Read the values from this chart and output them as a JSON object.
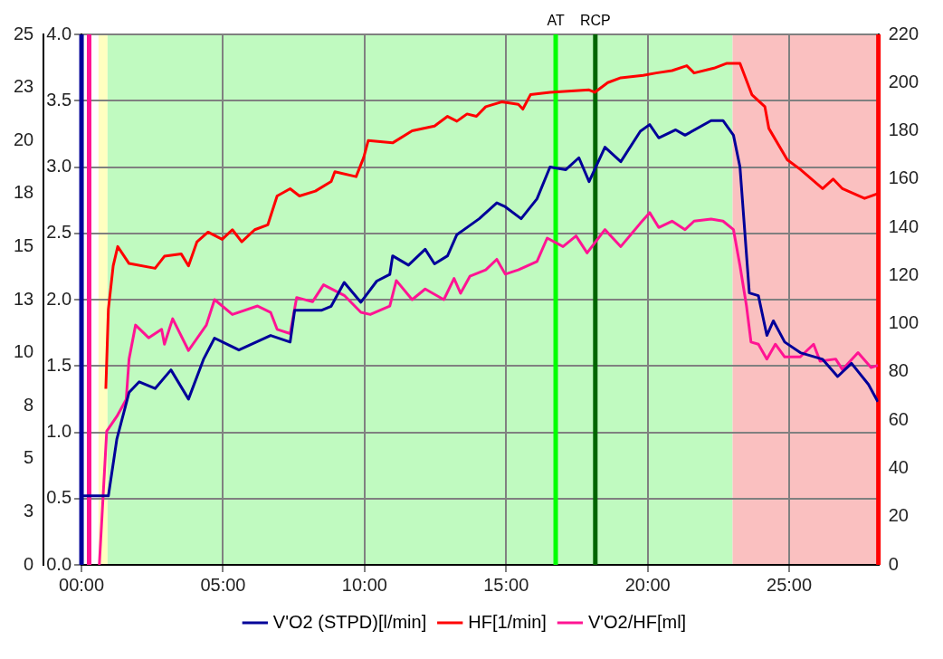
{
  "chart_data": {
    "type": "line",
    "xlim": [
      0,
      28.15
    ],
    "xticks": [
      {
        "value": 0,
        "label": "00:00"
      },
      {
        "value": 5,
        "label": "05:00"
      },
      {
        "value": 10,
        "label": "10:00"
      },
      {
        "value": 15,
        "label": "15:00"
      },
      {
        "value": 20,
        "label": "20:00"
      },
      {
        "value": 25,
        "label": "25:00"
      }
    ],
    "ylim": [
      0,
      4
    ],
    "yticks": [
      {
        "value": 0,
        "label": "0.0"
      },
      0.5,
      {
        "value": 1,
        "label": "1.0"
      },
      1.5,
      {
        "value": 2,
        "label": "2.0"
      },
      2.5,
      {
        "value": 3,
        "label": "3.0"
      },
      3.5,
      {
        "value": 4,
        "label": "4.0"
      }
    ],
    "y2lim": [
      0,
      220
    ],
    "y2ticks": [
      0,
      20,
      40,
      60,
      80,
      100,
      120,
      140,
      160,
      180,
      200,
      220
    ],
    "y3lim": [
      0,
      25
    ],
    "y3ticks": [
      0,
      {
        "value": 2.5,
        "label": "3"
      },
      5,
      {
        "value": 7.5,
        "label": "8"
      },
      10,
      {
        "value": 12.5,
        "label": "13"
      },
      15,
      {
        "value": 17.5,
        "label": "18"
      },
      20,
      {
        "value": 22.5,
        "label": "23"
      },
      25
    ],
    "grid": true,
    "legend": "bottom",
    "marker": "none",
    "line_style": "solid",
    "bands": [
      {
        "axis": "x",
        "from": 0.6,
        "to": 0.92,
        "color": "#ffffc0"
      },
      {
        "axis": "x",
        "from": 0.92,
        "to": 23.0,
        "color": "#c0fac0"
      },
      {
        "axis": "x",
        "from": 23.0,
        "to": 28.15,
        "color": "#fac0c0"
      }
    ],
    "ref_lines": [
      {
        "axis": "x",
        "value": 0,
        "color": "#000099"
      },
      {
        "axis": "x",
        "value": 0.27,
        "color": "#ff1493"
      },
      {
        "axis": "x",
        "value": 28.15,
        "color": "#ff0000"
      },
      {
        "axis": "x",
        "value": 16.75,
        "color": "#00ff00",
        "label": "AT"
      },
      {
        "axis": "x",
        "value": 18.15,
        "color": "#006400",
        "label": "RCP"
      }
    ],
    "series": [
      {
        "name": "V'O2 (STPD)[l/min]",
        "color": "#000099",
        "x": [
          0,
          0.95,
          1.25,
          1.68,
          2.04,
          2.6,
          3.16,
          3.78,
          4.31,
          4.7,
          5.56,
          6.68,
          7.37,
          7.53,
          8.49,
          8.82,
          9.28,
          9.87,
          10.43,
          10.89,
          10.99,
          11.55,
          12.14,
          12.47,
          12.93,
          13.26,
          14.05,
          14.67,
          14.97,
          15.53,
          16.09,
          16.55,
          17.11,
          17.57,
          17.93,
          18.49,
          19.05,
          19.74,
          20.07,
          20.39,
          20.99,
          21.32,
          22.24,
          22.66,
          23.03,
          23.26,
          23.59,
          23.91,
          24.21,
          24.44,
          24.84,
          25.39,
          26.18,
          26.71,
          27.2,
          27.8,
          28.13
        ],
        "values": [
          0.52,
          0.52,
          0.95,
          1.3,
          1.38,
          1.33,
          1.47,
          1.25,
          1.55,
          1.71,
          1.62,
          1.73,
          1.68,
          1.92,
          1.92,
          1.95,
          2.13,
          1.98,
          2.14,
          2.19,
          2.33,
          2.26,
          2.38,
          2.27,
          2.33,
          2.49,
          2.61,
          2.73,
          2.7,
          2.61,
          2.76,
          3.0,
          2.98,
          3.07,
          2.89,
          3.15,
          3.04,
          3.27,
          3.32,
          3.22,
          3.28,
          3.24,
          3.35,
          3.35,
          3.24,
          3.0,
          2.05,
          2.03,
          1.73,
          1.84,
          1.68,
          1.6,
          1.55,
          1.42,
          1.52,
          1.36,
          1.23
        ]
      },
      {
        "name": "HF[1/min]",
        "color": "#ff0000",
        "axis": "y2",
        "x": [
          0.86,
          0.95,
          1.12,
          1.28,
          1.68,
          2.6,
          2.93,
          3.52,
          3.78,
          4.08,
          4.47,
          4.97,
          5.33,
          5.66,
          6.12,
          6.58,
          6.91,
          7.37,
          7.7,
          8.26,
          8.82,
          8.95,
          9.7,
          9.97,
          10.13,
          10.99,
          11.68,
          12.47,
          12.93,
          13.26,
          13.62,
          13.95,
          14.28,
          14.84,
          15.43,
          15.59,
          15.86,
          16.55,
          17.93,
          18.13,
          18.59,
          19.05,
          19.84,
          20.3,
          20.86,
          21.38,
          21.64,
          22.34,
          22.8,
          23.26,
          23.68,
          24.14,
          24.28,
          24.93,
          25.39,
          26.18,
          26.55,
          26.88,
          27.66,
          28.13
        ],
        "values": [
          73,
          106,
          124,
          132,
          125,
          123,
          128,
          129,
          124,
          134,
          138,
          135,
          139,
          134,
          139,
          141,
          153,
          156,
          153,
          155,
          159,
          163,
          161,
          169,
          176,
          175,
          180,
          182,
          186,
          184,
          187,
          186,
          190,
          192,
          191,
          189,
          195,
          196,
          197,
          196,
          200,
          202,
          203,
          204,
          205,
          207,
          204,
          206,
          208,
          208,
          195,
          190,
          181,
          168,
          164,
          156,
          160,
          156,
          152,
          154
        ]
      },
      {
        "name": "V'O2/HF[ml]",
        "color": "#ff1493",
        "axis": "y3",
        "x": [
          0.63,
          0.89,
          1.25,
          1.58,
          1.68,
          1.91,
          2.37,
          2.83,
          2.93,
          3.22,
          3.78,
          4.41,
          4.7,
          5.33,
          6.22,
          6.68,
          6.91,
          7.37,
          7.6,
          8.16,
          8.55,
          9.28,
          9.87,
          10.2,
          10.89,
          11.12,
          11.68,
          12.14,
          12.8,
          13.16,
          13.39,
          13.72,
          14.28,
          14.67,
          14.97,
          15.43,
          16.09,
          16.45,
          17.01,
          17.47,
          17.86,
          18.49,
          19.05,
          19.74,
          20.07,
          20.39,
          20.86,
          21.32,
          21.64,
          22.24,
          22.66,
          23.03,
          23.26,
          23.49,
          23.65,
          23.91,
          24.21,
          24.51,
          24.84,
          25.39,
          25.86,
          26.09,
          26.64,
          26.88,
          27.43,
          27.89,
          28.13
        ],
        "values": [
          0,
          6.3,
          7.0,
          7.8,
          9.7,
          11.3,
          10.7,
          11.1,
          10.4,
          11.6,
          10.1,
          11.3,
          12.5,
          11.8,
          12.2,
          11.9,
          11.1,
          10.9,
          12.6,
          12.4,
          13.2,
          12.7,
          11.9,
          11.8,
          12.2,
          13.4,
          12.5,
          13.0,
          12.5,
          13.5,
          12.8,
          13.6,
          13.9,
          14.4,
          13.7,
          13.9,
          14.3,
          15.4,
          15.0,
          15.5,
          14.7,
          15.8,
          15.0,
          16.1,
          16.6,
          15.9,
          16.2,
          15.8,
          16.2,
          16.3,
          16.2,
          15.8,
          14.1,
          12.2,
          10.5,
          10.4,
          9.7,
          10.4,
          9.8,
          9.8,
          10.4,
          9.6,
          9.7,
          9.2,
          10.0,
          9.3,
          9.4
        ]
      }
    ]
  }
}
